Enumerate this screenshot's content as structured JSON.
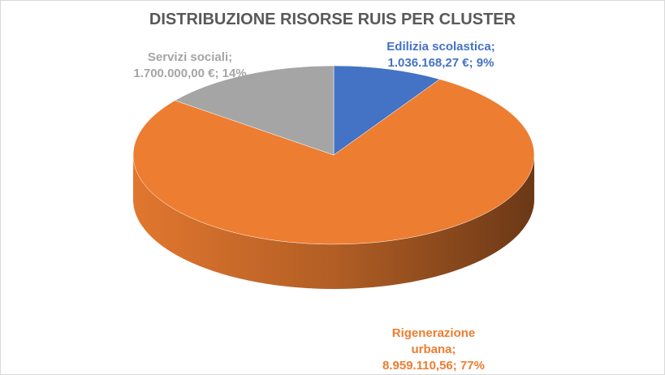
{
  "chart_data": {
    "type": "pie3d",
    "title": "DISTRIBUZIONE RISORSE RUIS PER CLUSTER",
    "categories": [
      "Edilizia scolastica;",
      "Rigenerazione urbana;",
      "Servizi sociali;"
    ],
    "values": [
      1036168.27,
      8959110.56,
      1700000.0
    ],
    "value_labels": [
      "1.036.168,27 €; 9%",
      "8.959.110,56; 77%",
      "1.700.000,00 €; 14%"
    ],
    "colors": [
      "#4472c4",
      "#ed7d31",
      "#a5a5a5"
    ]
  }
}
